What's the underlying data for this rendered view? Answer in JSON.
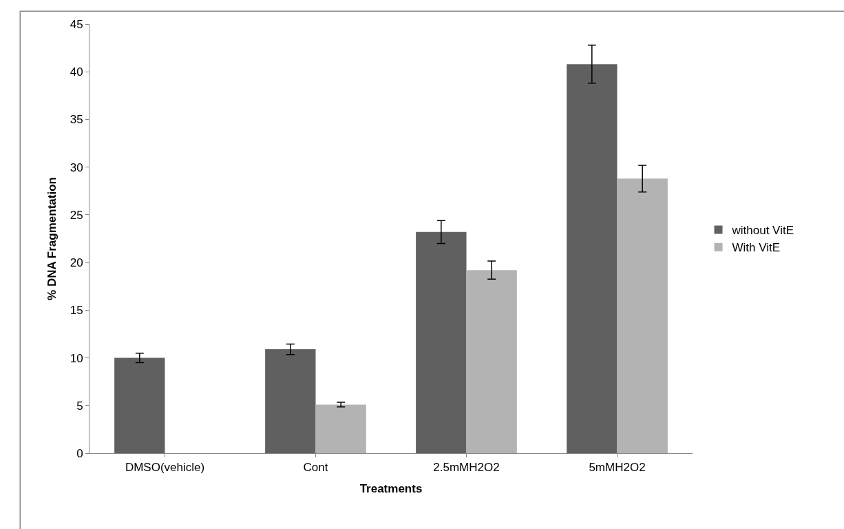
{
  "chart_data": {
    "type": "bar",
    "xlabel": "Treatments",
    "ylabel": "% DNA Fragmentation",
    "categories": [
      "DMSO(vehicle)",
      "Cont",
      "2.5mMH2O2",
      "5mMH2O2"
    ],
    "series": [
      {
        "name": "without VitE",
        "color": "#606060",
        "values": [
          10.0,
          10.9,
          23.2,
          40.8
        ],
        "errors": [
          0.5,
          0.55,
          1.2,
          2.0
        ]
      },
      {
        "name": "With VitE",
        "color": "#b3b3b3",
        "values": [
          null,
          5.1,
          19.2,
          28.8
        ],
        "errors": [
          null,
          0.25,
          0.95,
          1.4
        ]
      }
    ],
    "ylim": [
      0,
      45
    ],
    "yticks": [
      0,
      5,
      10,
      15,
      20,
      25,
      30,
      35,
      40,
      45
    ],
    "grid": false,
    "legend": "right"
  }
}
